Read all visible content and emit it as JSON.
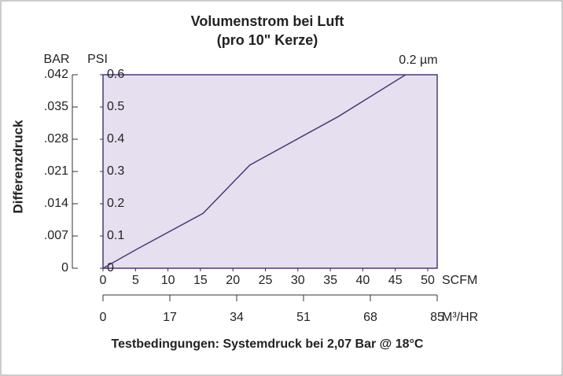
{
  "chart_data": {
    "type": "line",
    "title": "Volumenstrom bei Luft",
    "subtitle": "(pro 10\" Kerze)",
    "y_label": "Differenzdruck",
    "y_unit": "PSI",
    "y2_unit": "BAR",
    "x_unit": "SCFM",
    "x2_unit": "M³/HR",
    "footer": "Testbedingungen: Systemdruck bei 2,07 Bar @ 18°C",
    "x": [
      0,
      5.3,
      15.4,
      22.6,
      36.2,
      46.6
    ],
    "series": [
      {
        "name": "0.2 µm",
        "color": "#4a3a78",
        "values": [
          0,
          0.06,
          0.17,
          0.32,
          0.47,
          0.6
        ]
      }
    ],
    "xlim": [
      0,
      50
    ],
    "xticks": [
      0,
      5,
      10,
      15,
      20,
      25,
      30,
      35,
      40,
      45,
      50
    ],
    "x2lim": [
      0,
      85
    ],
    "x2ticks": [
      0,
      17,
      34,
      51,
      68,
      85
    ],
    "ylim": [
      0,
      0.6
    ],
    "yticks": [
      0,
      0.1,
      0.2,
      0.3,
      0.4,
      0.5,
      0.6
    ],
    "y2lim": [
      0,
      0.042
    ],
    "y2ticks": [
      0,
      {
        "value": 0.007,
        "label": ".007"
      },
      {
        "value": 0.014,
        "label": ".014"
      },
      {
        "value": 0.021,
        "label": ".021"
      },
      {
        "value": 0.028,
        "label": ".028"
      },
      {
        "value": 0.035,
        "label": ".035"
      },
      {
        "value": 0.042,
        "label": ".042"
      }
    ],
    "plot_color": "#e6dff0"
  }
}
